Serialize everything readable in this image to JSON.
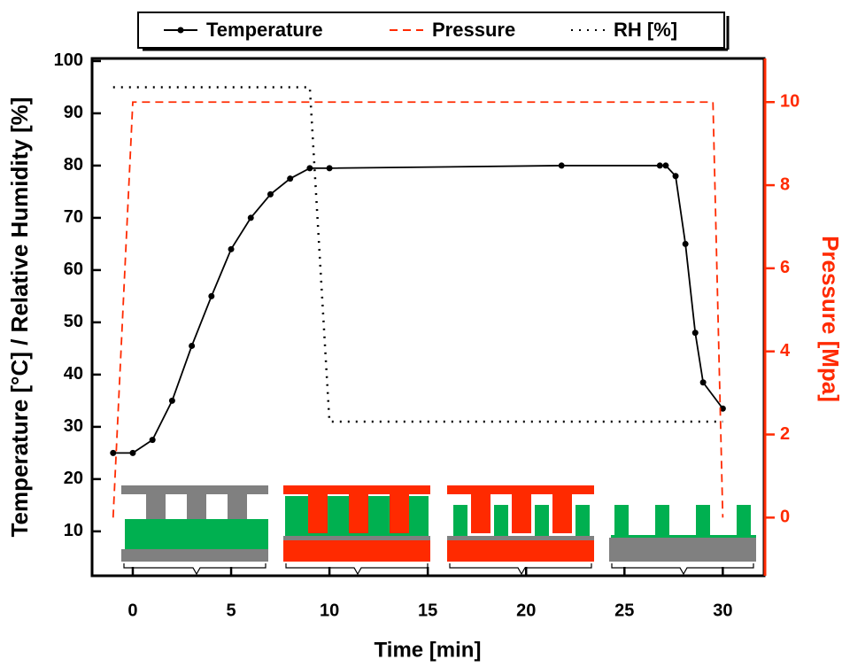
{
  "chart_data": {
    "type": "line",
    "xlabel": "Time [min]",
    "ylabel": "Temperature [°C]  / Relative Humidity [%]",
    "y2label": "Pressure [Mpa]",
    "xlim": [
      -2.07,
      32.1
    ],
    "xticks": [
      0,
      5,
      10,
      15,
      20,
      25,
      30
    ],
    "ylim": [
      1.5,
      100.5
    ],
    "yticks": [
      10,
      20,
      30,
      40,
      50,
      60,
      70,
      80,
      90,
      100
    ],
    "y2lim": [
      -1.4,
      11.05
    ],
    "y2ticks": [
      0,
      2,
      4,
      6,
      8,
      10
    ],
    "y2color": "#ff2a00",
    "series": [
      {
        "name": "Temperature",
        "color": "#000000",
        "style": "solid-marker",
        "x": [
          -1,
          0,
          1,
          2,
          3,
          4,
          5,
          6,
          7,
          8,
          9,
          10,
          21.8,
          26.8,
          27.1,
          27.6,
          28.1,
          28.6,
          29,
          30
        ],
        "values": [
          25,
          25,
          27.5,
          35,
          45.5,
          55,
          64,
          70,
          74.5,
          77.5,
          79.5,
          79.5,
          80,
          80,
          80,
          78,
          65,
          48,
          38.5,
          33.5
        ]
      },
      {
        "name": "Pressure",
        "color": "#ff2a00",
        "style": "dashed",
        "axis": "y2",
        "x": [
          -1,
          0,
          29.5,
          30
        ],
        "values": [
          0,
          10,
          10,
          0
        ]
      },
      {
        "name": "RH [%]",
        "color": "#000000",
        "style": "dotted",
        "x": [
          -1,
          9,
          10,
          30
        ],
        "values": [
          95,
          95,
          31,
          31
        ]
      }
    ]
  }
}
